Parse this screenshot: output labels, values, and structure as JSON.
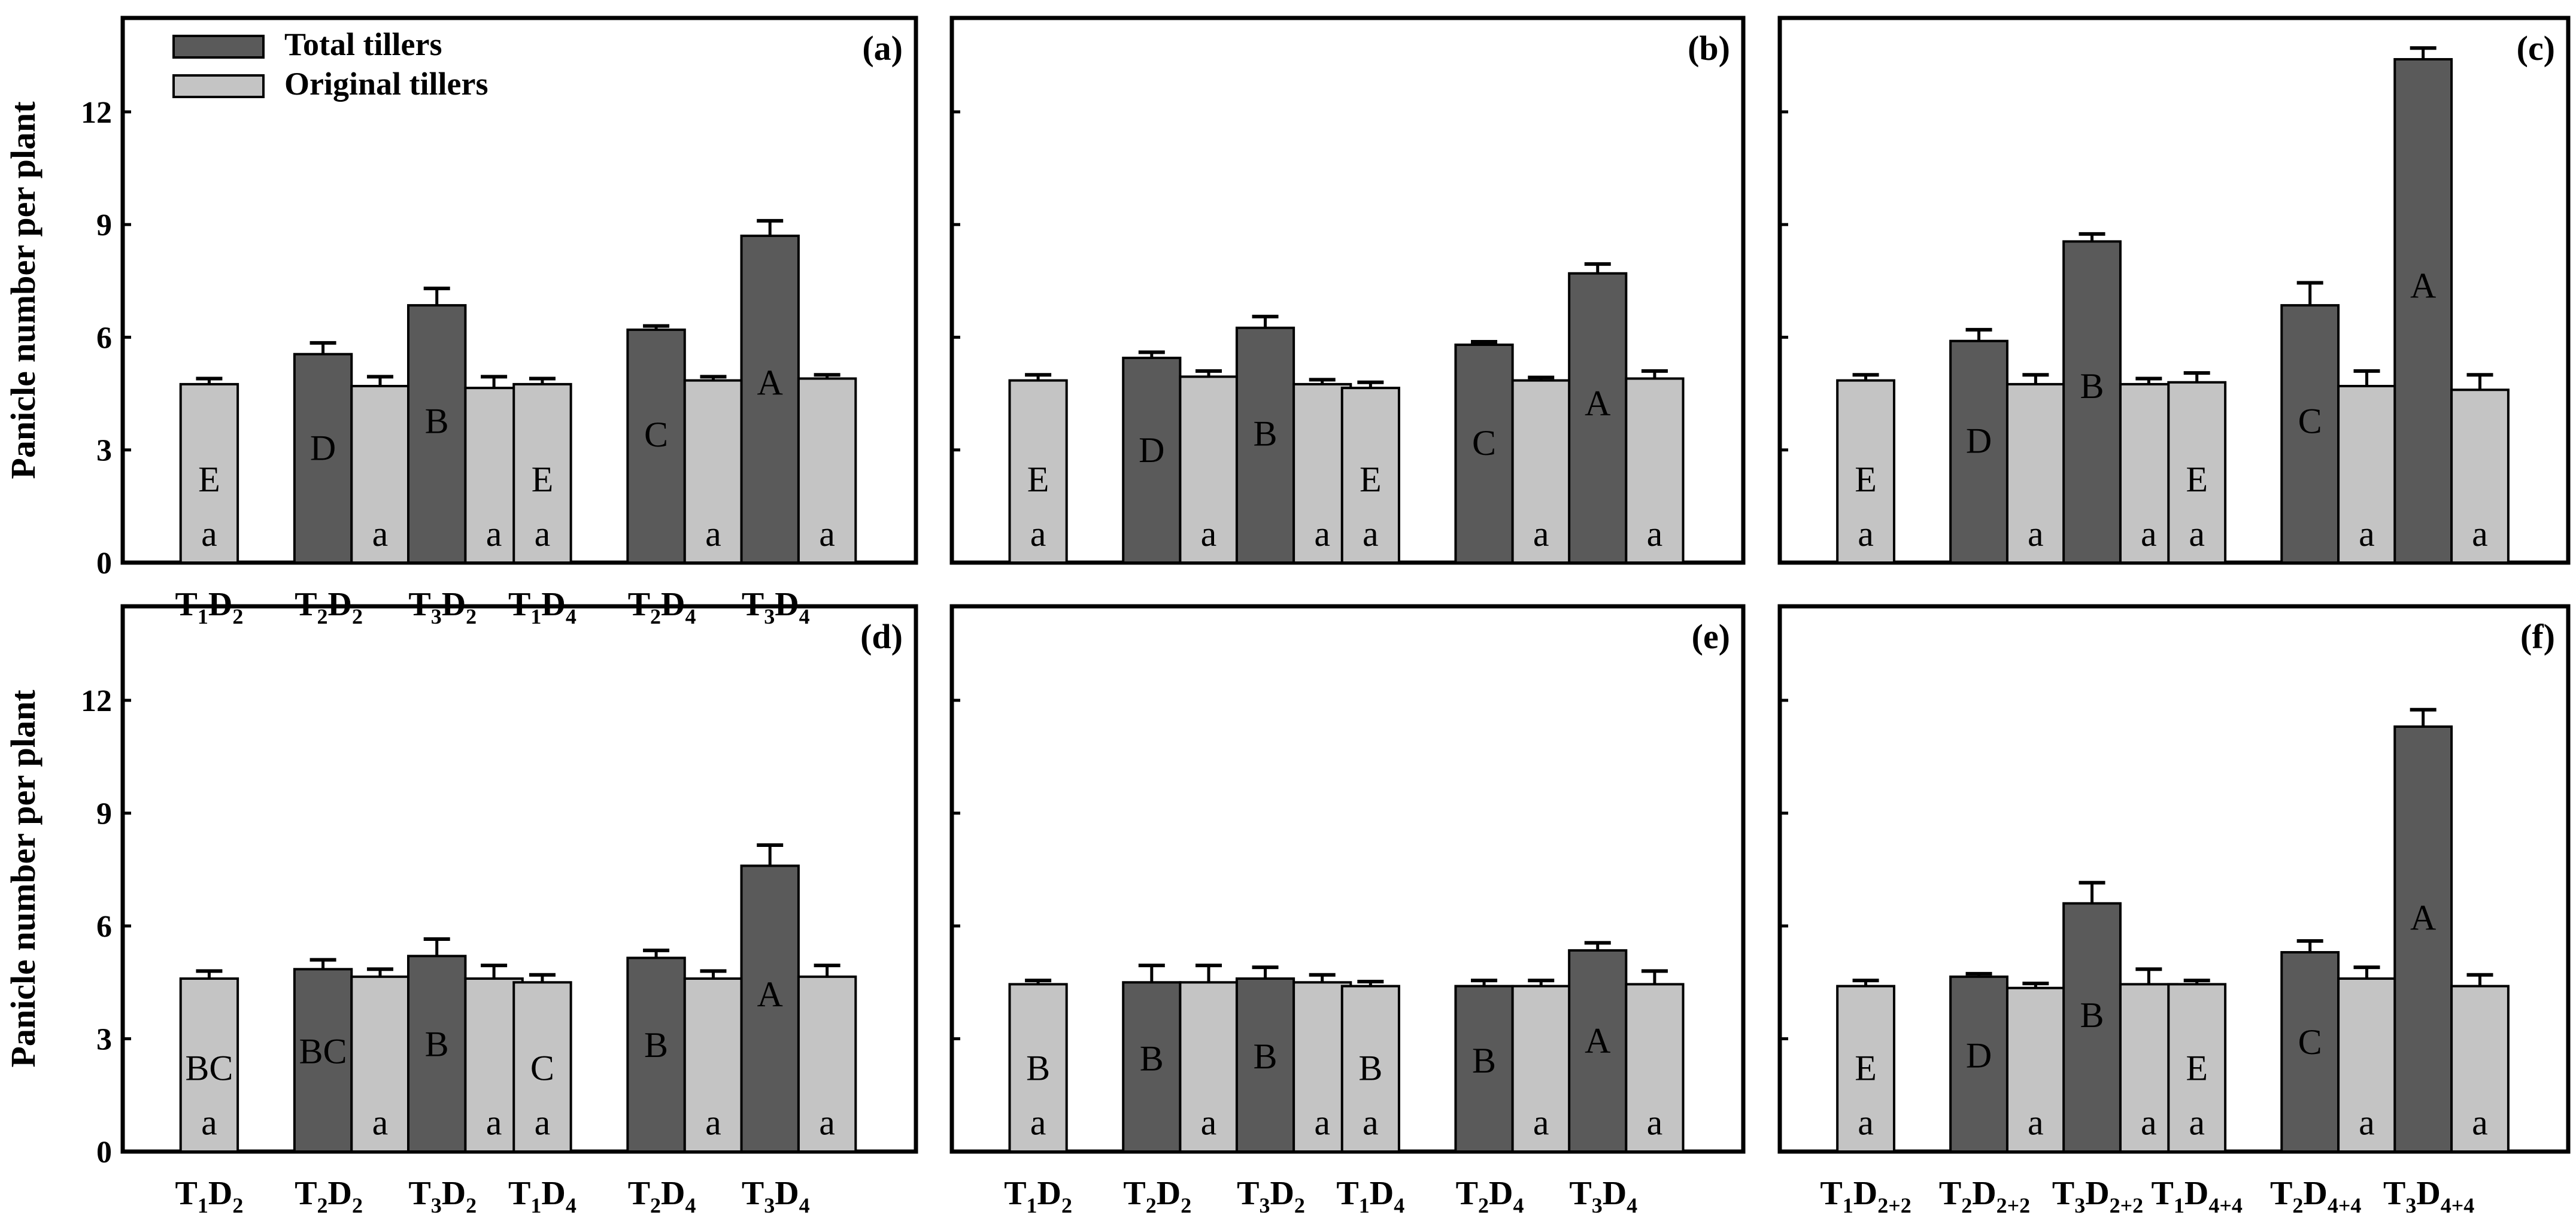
{
  "figure": {
    "ylabel": "Panicle number per plant",
    "yticks": [
      "0",
      "3",
      "6",
      "9",
      "12"
    ],
    "legend": [
      {
        "label": "Total tillers",
        "color": "#5a5a5a"
      },
      {
        "label": "Original tillers",
        "color": "#c4c4c4"
      }
    ]
  },
  "chart_data": [
    {
      "type": "bar",
      "panel": "(a)",
      "ylim": [
        0,
        14.5
      ],
      "categories": [
        "T1D2",
        "T2D2",
        "T3D2",
        "T1D4",
        "T2D4",
        "T3D4"
      ],
      "category_labels": [
        {
          "main": "T",
          "sub1": "1",
          "mid": "D",
          "sub2": "2"
        },
        {
          "main": "T",
          "sub1": "2",
          "mid": "D",
          "sub2": "2"
        },
        {
          "main": "T",
          "sub1": "3",
          "mid": "D",
          "sub2": "2"
        },
        {
          "main": "T",
          "sub1": "1",
          "mid": "D",
          "sub2": "4"
        },
        {
          "main": "T",
          "sub1": "2",
          "mid": "D",
          "sub2": "4"
        },
        {
          "main": "T",
          "sub1": "3",
          "mid": "D",
          "sub2": "4"
        }
      ],
      "series": [
        {
          "name": "Total tillers",
          "values": [
            4.75,
            5.55,
            6.85,
            4.75,
            6.2,
            8.7
          ],
          "errors": [
            0.15,
            0.3,
            0.45,
            0.15,
            0.1,
            0.4
          ],
          "letters": [
            "E",
            "D",
            "B",
            "E",
            "C",
            "A"
          ]
        },
        {
          "name": "Original tillers",
          "values": [
            null,
            4.7,
            4.65,
            null,
            4.85,
            4.9
          ],
          "errors": [
            null,
            0.25,
            0.3,
            null,
            0.1,
            0.1
          ],
          "letters": [
            "a",
            "a",
            "a",
            "a",
            "a",
            "a"
          ]
        }
      ]
    },
    {
      "type": "bar",
      "panel": "(b)",
      "ylim": [
        0,
        14.5
      ],
      "categories": [
        "T1D2",
        "T2D2",
        "T3D2",
        "T1D4",
        "T2D4",
        "T3D4"
      ],
      "category_labels": [],
      "series": [
        {
          "name": "Total tillers",
          "values": [
            4.85,
            5.45,
            6.25,
            4.65,
            5.8,
            7.7
          ],
          "errors": [
            0.15,
            0.15,
            0.3,
            0.15,
            0.08,
            0.25
          ],
          "letters": [
            "E",
            "D",
            "B",
            "E",
            "C",
            "A"
          ]
        },
        {
          "name": "Original tillers",
          "values": [
            null,
            4.95,
            4.75,
            null,
            4.85,
            4.9
          ],
          "errors": [
            null,
            0.15,
            0.12,
            null,
            0.08,
            0.2
          ],
          "letters": [
            "a",
            "a",
            "a",
            "a",
            "a",
            "a"
          ]
        }
      ]
    },
    {
      "type": "bar",
      "panel": "(c)",
      "ylim": [
        0,
        14.5
      ],
      "categories": [
        "T1D2+2",
        "T2D2+2",
        "T3D2+2",
        "T1D4+4",
        "T2D4+4",
        "T3D4+4"
      ],
      "category_labels": [],
      "series": [
        {
          "name": "Total tillers",
          "values": [
            4.85,
            5.9,
            8.55,
            4.8,
            6.85,
            13.4
          ],
          "errors": [
            0.15,
            0.3,
            0.2,
            0.25,
            0.6,
            0.3
          ],
          "letters": [
            "E",
            "D",
            "B",
            "E",
            "C",
            "A"
          ]
        },
        {
          "name": "Original tillers",
          "values": [
            null,
            4.75,
            4.75,
            null,
            4.7,
            4.6
          ],
          "errors": [
            null,
            0.25,
            0.15,
            null,
            0.4,
            0.4
          ],
          "letters": [
            "a",
            "a",
            "a",
            "a",
            "a",
            "a"
          ]
        }
      ]
    },
    {
      "type": "bar",
      "panel": "(d)",
      "ylim": [
        0,
        14.5
      ],
      "categories": [
        "T1D2",
        "T2D2",
        "T3D2",
        "T1D4",
        "T2D4",
        "T3D4"
      ],
      "category_labels": [
        {
          "main": "T",
          "sub1": "1",
          "mid": "D",
          "sub2": "2"
        },
        {
          "main": "T",
          "sub1": "2",
          "mid": "D",
          "sub2": "2"
        },
        {
          "main": "T",
          "sub1": "3",
          "mid": "D",
          "sub2": "2"
        },
        {
          "main": "T",
          "sub1": "1",
          "mid": "D",
          "sub2": "4"
        },
        {
          "main": "T",
          "sub1": "2",
          "mid": "D",
          "sub2": "4"
        },
        {
          "main": "T",
          "sub1": "3",
          "mid": "D",
          "sub2": "4"
        }
      ],
      "series": [
        {
          "name": "Total tillers",
          "values": [
            4.6,
            4.85,
            5.2,
            4.5,
            5.15,
            7.6
          ],
          "errors": [
            0.2,
            0.25,
            0.45,
            0.2,
            0.2,
            0.55
          ],
          "letters": [
            "BC",
            "BC",
            "B",
            "C",
            "B",
            "A"
          ]
        },
        {
          "name": "Original tillers",
          "values": [
            null,
            4.65,
            4.6,
            null,
            4.6,
            4.65
          ],
          "errors": [
            null,
            0.2,
            0.35,
            null,
            0.2,
            0.3
          ],
          "letters": [
            "a",
            "a",
            "a",
            "a",
            "a",
            "a"
          ]
        }
      ]
    },
    {
      "type": "bar",
      "panel": "(e)",
      "ylim": [
        0,
        14.5
      ],
      "categories": [
        "T1D2",
        "T2D2",
        "T3D2",
        "T1D4",
        "T2D4",
        "T3D4"
      ],
      "category_labels": [
        {
          "main": "T",
          "sub1": "1",
          "mid": "D",
          "sub2": "2"
        },
        {
          "main": "T",
          "sub1": "2",
          "mid": "D",
          "sub2": "2"
        },
        {
          "main": "T",
          "sub1": "3",
          "mid": "D",
          "sub2": "2"
        },
        {
          "main": "T",
          "sub1": "1",
          "mid": "D",
          "sub2": "4"
        },
        {
          "main": "T",
          "sub1": "2",
          "mid": "D",
          "sub2": "4"
        },
        {
          "main": "T",
          "sub1": "3",
          "mid": "D",
          "sub2": "4"
        }
      ],
      "series": [
        {
          "name": "Total tillers",
          "values": [
            4.45,
            4.5,
            4.6,
            4.4,
            4.4,
            5.35
          ],
          "errors": [
            0.1,
            0.45,
            0.3,
            0.12,
            0.15,
            0.2
          ],
          "letters": [
            "B",
            "B",
            "B",
            "B",
            "B",
            "A"
          ]
        },
        {
          "name": "Original tillers",
          "values": [
            null,
            4.5,
            4.5,
            null,
            4.4,
            4.45
          ],
          "errors": [
            null,
            0.45,
            0.2,
            null,
            0.15,
            0.35
          ],
          "letters": [
            "a",
            "a",
            "a",
            "a",
            "a",
            "a"
          ]
        }
      ]
    },
    {
      "type": "bar",
      "panel": "(f)",
      "ylim": [
        0,
        14.5
      ],
      "categories": [
        "T1D2+2",
        "T2D2+2",
        "T3D2+2",
        "T1D4+4",
        "T2D4+4",
        "T3D4+4"
      ],
      "category_labels": [
        {
          "main": "T",
          "sub1": "1",
          "mid": "D",
          "sub2": "2+2"
        },
        {
          "main": "T",
          "sub1": "2",
          "mid": "D",
          "sub2": "2+2"
        },
        {
          "main": "T",
          "sub1": "3",
          "mid": "D",
          "sub2": "2+2"
        },
        {
          "main": "T",
          "sub1": "1",
          "mid": "D",
          "sub2": "4+4"
        },
        {
          "main": "T",
          "sub1": "2",
          "mid": "D",
          "sub2": "4+4"
        },
        {
          "main": "T",
          "sub1": "3",
          "mid": "D",
          "sub2": "4+4"
        }
      ],
      "series": [
        {
          "name": "Total tillers",
          "values": [
            4.4,
            4.65,
            6.6,
            4.45,
            5.3,
            11.3
          ],
          "errors": [
            0.15,
            0.08,
            0.55,
            0.1,
            0.3,
            0.45
          ],
          "letters": [
            "E",
            "D",
            "B",
            "E",
            "C",
            "A"
          ]
        },
        {
          "name": "Original tillers",
          "values": [
            null,
            4.35,
            4.45,
            null,
            4.6,
            4.4
          ],
          "errors": [
            null,
            0.12,
            0.4,
            null,
            0.3,
            0.3
          ],
          "letters": [
            "a",
            "a",
            "a",
            "a",
            "a",
            "a"
          ]
        }
      ]
    }
  ]
}
